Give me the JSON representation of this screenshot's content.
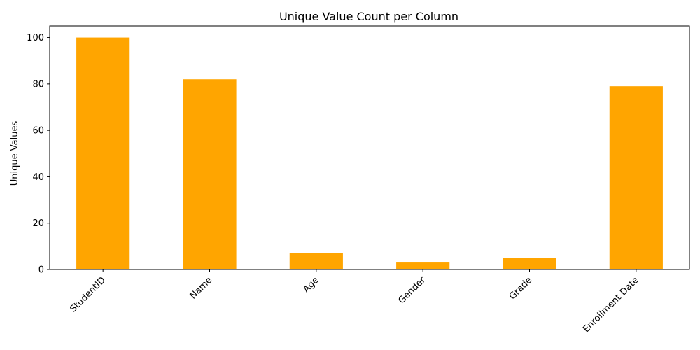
{
  "chart_data": {
    "type": "bar",
    "title": "Unique Value Count per Column",
    "xlabel": "",
    "ylabel": "Unique Values",
    "categories": [
      "StudentID",
      "Name",
      "Age",
      "Gender",
      "Grade",
      "Enrollment Date"
    ],
    "values": [
      100,
      82,
      7,
      3,
      5,
      79
    ],
    "ylim": [
      0,
      105
    ],
    "yticks": [
      0,
      20,
      40,
      60,
      80,
      100
    ],
    "bar_color": "#ffa500",
    "grid": false,
    "legend": "none",
    "x_tick_rotation": 45
  }
}
